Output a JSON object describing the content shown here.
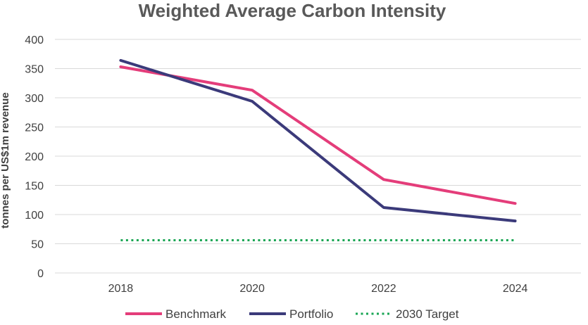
{
  "chart_data": {
    "type": "line",
    "title": "Weighted Average Carbon Intensity",
    "xlabel": "",
    "ylabel": "tonnes per US$1m revenue",
    "x": [
      2018,
      2020,
      2022,
      2024
    ],
    "xlim": [
      2017,
      2025
    ],
    "ylim": [
      0,
      400
    ],
    "yticks": [
      0,
      50,
      100,
      150,
      200,
      250,
      300,
      350,
      400
    ],
    "grid": true,
    "legend_position": "bottom",
    "series": [
      {
        "name": "Benchmark",
        "values": [
          353,
          313,
          160,
          119
        ],
        "color": "#e43d7a",
        "style": "solid"
      },
      {
        "name": "Portfolio",
        "values": [
          364,
          294,
          112,
          89
        ],
        "color": "#3b3a7a",
        "style": "solid"
      },
      {
        "name": "2030 Target",
        "values": [
          56,
          56,
          56,
          56
        ],
        "color": "#1aa654",
        "style": "dotted"
      }
    ]
  }
}
